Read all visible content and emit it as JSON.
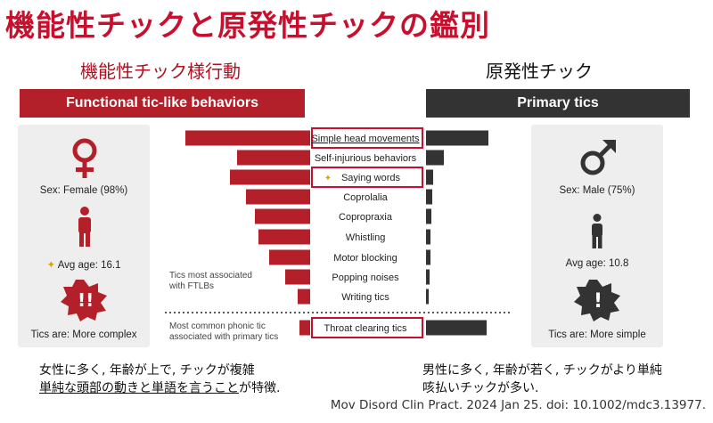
{
  "title": "機能性チックと原発性チックの鑑別",
  "subtitle_left": "機能性チック様行動",
  "subtitle_right": "原発性チック",
  "left_header": "Functional tic-like behaviors",
  "right_header": "Primary tics",
  "left_panel": {
    "sex": "Sex: Female (98%)",
    "age": "Avg age: 16.1",
    "tics": "Tics are: More complex"
  },
  "right_panel": {
    "sex": "Sex: Male (75%)",
    "age": "Avg age: 10.8",
    "tics": "Tics are: More simple"
  },
  "notes": {
    "ftlb_line1": "Tics most associated",
    "ftlb_line2": "with FTLBs",
    "phonic_line1": "Most common phonic tic",
    "phonic_line2": "associated with primary tics"
  },
  "colors": {
    "ftlb": "#b3202a",
    "primary": "#333333",
    "highlight": "#c8102e",
    "star": "#e0a100"
  },
  "icons": {
    "female": "female-symbol-icon",
    "male": "male-symbol-icon",
    "person": "person-icon",
    "complex": "complex-tic-icon",
    "simple": "simple-tic-icon"
  },
  "chart_data": {
    "type": "bar",
    "orientation": "horizontal-butterfly",
    "categories": [
      "Simple head movements",
      "Self-injurious behaviors",
      "Saying words",
      "Coprolalia",
      "Copropraxia",
      "Whistling",
      "Motor blocking",
      "Popping noises",
      "Writing tics",
      "Throat clearing tics"
    ],
    "highlighted": [
      "Simple head movements",
      "Saying words",
      "Throat clearing tics"
    ],
    "starred": [
      "Saying words"
    ],
    "series": [
      {
        "values": [
          140,
          82,
          90,
          72,
          62,
          58,
          46,
          28,
          14,
          12
        ]
      },
      {
        "values": [
          70,
          20,
          8,
          7,
          6,
          5,
          5,
          4,
          3,
          68
        ]
      }
    ]
  },
  "description_left": {
    "line1": "女性に多く, 年齢が上で, チックが複雑",
    "line2_underlined": "単純な頭部の動きと単語を言うこと",
    "line2_rest": "が特徴."
  },
  "description_right": {
    "line1": "男性に多く, 年齢が若く, チックがより単純",
    "line2": "咳払いチックが多い."
  },
  "citation": "Mov Disord Clin Pract. 2024 Jan 25. doi: 10.1002/mdc3.13977."
}
